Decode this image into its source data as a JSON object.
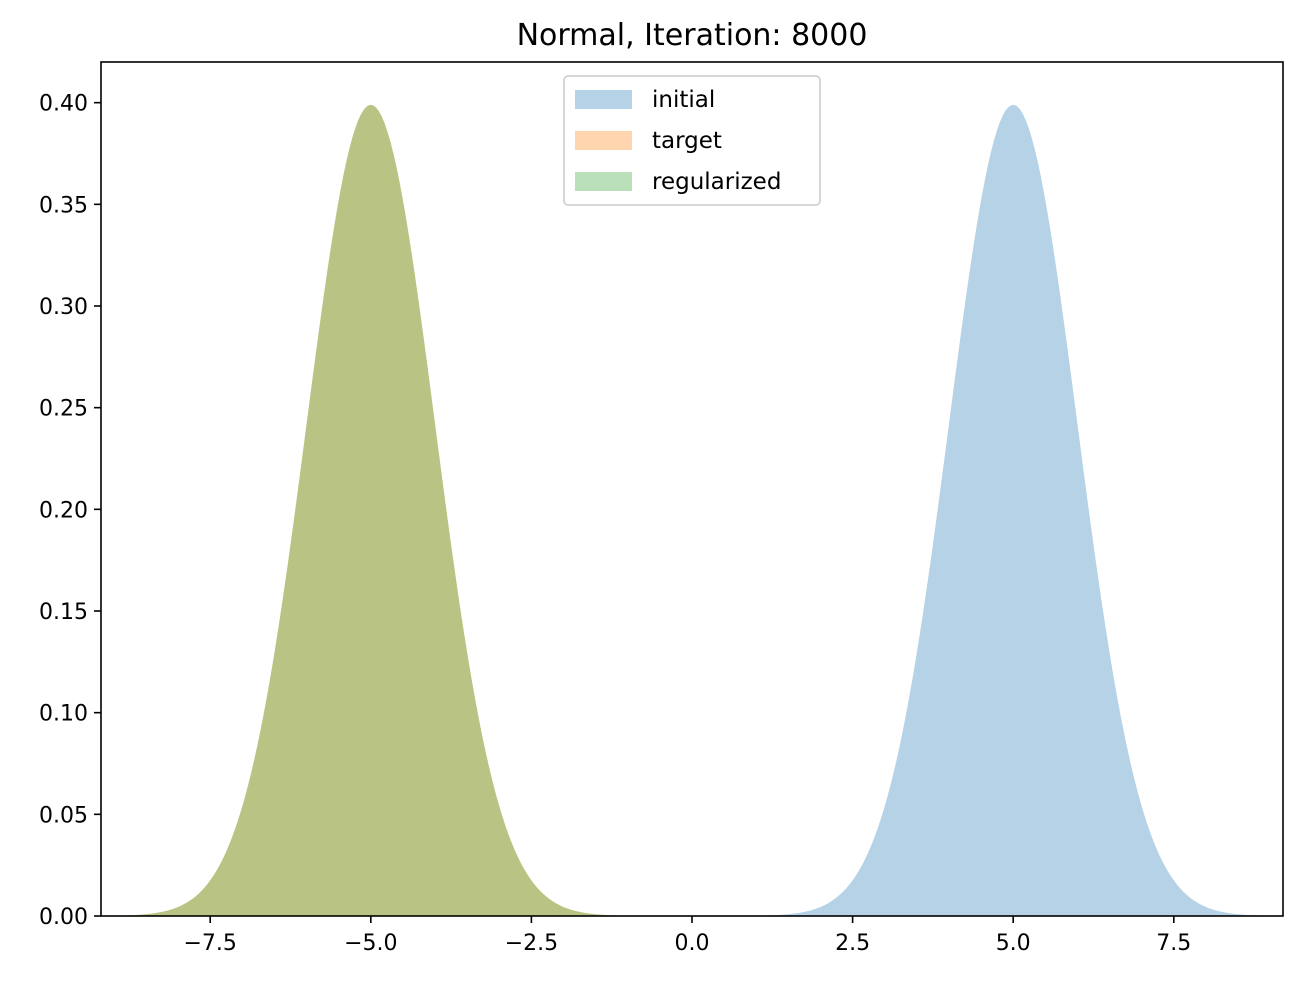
{
  "chart_data": {
    "type": "area",
    "title": "Normal, Iteration: 8000",
    "xlabel": "",
    "ylabel": "",
    "xlim": [
      -9.2,
      9.2
    ],
    "ylim": [
      0.0,
      0.42
    ],
    "grid": false,
    "legend_position": "upper center",
    "xticks": [
      -7.5,
      -5.0,
      -2.5,
      0.0,
      2.5,
      5.0,
      7.5
    ],
    "xtick_labels": [
      "−7.5",
      "−5.0",
      "−2.5",
      "0.0",
      "2.5",
      "5.0",
      "7.5"
    ],
    "yticks": [
      0.0,
      0.05,
      0.1,
      0.15,
      0.2,
      0.25,
      0.3,
      0.35,
      0.4
    ],
    "ytick_labels": [
      "0.00",
      "0.05",
      "0.10",
      "0.15",
      "0.20",
      "0.25",
      "0.30",
      "0.35",
      "0.40"
    ],
    "series": [
      {
        "name": "initial",
        "distribution": "normal",
        "mean": 5.0,
        "std": 1.0,
        "x_range": [
          -9.2,
          9.2
        ],
        "color": "#1f77b4",
        "opacity": 0.33
      },
      {
        "name": "target",
        "distribution": "normal",
        "mean": -5.0,
        "std": 1.0,
        "x_range": [
          -9.2,
          9.2
        ],
        "color": "#ff7f0e",
        "opacity": 0.33
      },
      {
        "name": "regularized",
        "distribution": "normal",
        "mean": -5.0,
        "std": 1.0,
        "x_range": [
          -9.2,
          9.2
        ],
        "color": "#2ca02c",
        "opacity": 0.33
      }
    ]
  }
}
